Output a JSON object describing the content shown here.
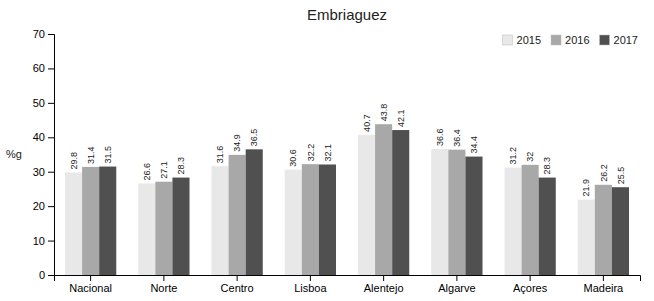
{
  "chart_data": {
    "type": "bar",
    "title": "Embriaguez",
    "ylabel": "%g",
    "categories": [
      "Nacional",
      "Norte",
      "Centro",
      "Lisboa",
      "Alentejo",
      "Algarve",
      "Açores",
      "Madeira"
    ],
    "series": [
      {
        "name": "2015",
        "color": "#e8e8e8",
        "values": [
          29.8,
          26.6,
          31.6,
          30.6,
          40.7,
          36.6,
          31.2,
          21.9
        ]
      },
      {
        "name": "2016",
        "color": "#a8a8a8",
        "values": [
          31.4,
          27.1,
          34.9,
          32.2,
          43.8,
          36.4,
          32.0,
          26.2
        ]
      },
      {
        "name": "2017",
        "color": "#505050",
        "values": [
          31.5,
          28.3,
          36.5,
          32.1,
          42.1,
          34.4,
          28.3,
          25.5
        ]
      }
    ],
    "ylim": [
      0,
      70
    ],
    "yticks": [
      0,
      10,
      20,
      30,
      40,
      50,
      60,
      70
    ],
    "data_labels": true,
    "legend": "upper right",
    "grid": false
  }
}
